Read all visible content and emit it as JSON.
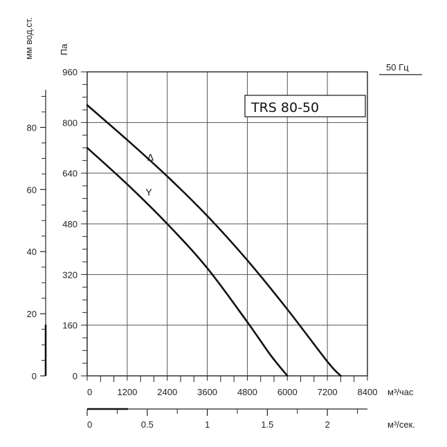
{
  "chart_data": {
    "type": "line",
    "model_label": "TRS 80-50",
    "frequency_label": "50 Гц",
    "left_axis_label": "мм вод.ст.",
    "pa_axis_label": "Па",
    "x_unit_label": "м³/час",
    "x2_unit_label": "м³/сек.",
    "xlim": [
      0,
      8400
    ],
    "ylim": [
      0,
      960
    ],
    "x_ticks": [
      0,
      1200,
      2400,
      3600,
      4800,
      6000,
      7200,
      8400
    ],
    "x_tick_labels": [
      "0",
      "1200",
      "2400",
      "3600",
      "4800",
      "6000",
      "7200",
      "8400"
    ],
    "y_ticks": [
      0,
      160,
      320,
      480,
      640,
      800,
      960
    ],
    "y_tick_labels": [
      "0",
      "160",
      "320",
      "480",
      "640",
      "800",
      "960"
    ],
    "mm_ticks": [
      0,
      20,
      40,
      60,
      80
    ],
    "mm_tick_labels": [
      "0",
      "20",
      "40",
      "60",
      "80"
    ],
    "x2_ticks": [
      0,
      0.5,
      1,
      1.5,
      2
    ],
    "x2_tick_labels": [
      "0",
      "0.5",
      "1",
      "1.5",
      "2"
    ],
    "grid": true,
    "series": [
      {
        "name": "Δ",
        "x": [
          0,
          1200,
          2400,
          3600,
          4800,
          6000,
          7200,
          7600
        ],
        "y": [
          855,
          745,
          630,
          505,
          365,
          210,
          45,
          0
        ]
      },
      {
        "name": "Y",
        "x": [
          0,
          1200,
          2400,
          3600,
          4800,
          5500,
          6000
        ],
        "y": [
          720,
          605,
          480,
          340,
          170,
          65,
          0
        ]
      }
    ]
  }
}
